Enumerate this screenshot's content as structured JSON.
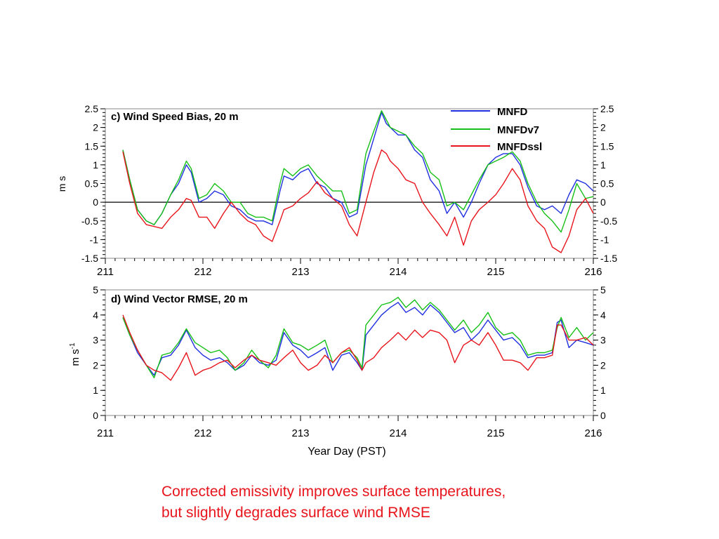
{
  "caption": {
    "line1": "Corrected emissivity improves surface temperatures,",
    "line2": "but slightly degrades surface wind RMSE"
  },
  "x_axis_label": "Year Day (PST)",
  "legend": [
    {
      "name": "MNFD",
      "color": "#1f2fe0"
    },
    {
      "name": "MNFDv7",
      "color": "#16c016"
    },
    {
      "name": "MNFDssl",
      "color": "#e8141c"
    }
  ],
  "chart_data": [
    {
      "type": "line",
      "title": "c) Wind Speed Bias, 20 m",
      "ylabel": "m s",
      "xlim": [
        211,
        216
      ],
      "ylim": [
        -1.5,
        2.5
      ],
      "xticks": [
        "211",
        "212",
        "213",
        "214",
        "215",
        "216"
      ],
      "yticks": [
        "-1.5",
        "-1",
        "-0.5",
        "0",
        "0.5",
        "1",
        "1.5",
        "2",
        "2.5"
      ],
      "zero_line": true,
      "series": [
        {
          "name": "MNFD",
          "color": "#1f2fe0",
          "x": [
            211.18,
            211.25,
            211.33,
            211.42,
            211.5,
            211.58,
            211.67,
            211.75,
            211.83,
            211.88,
            211.96,
            212.04,
            212.12,
            212.21,
            212.29,
            212.38,
            212.46,
            212.54,
            212.62,
            212.71,
            212.79,
            212.83,
            212.92,
            213.0,
            213.08,
            213.17,
            213.25,
            213.33,
            213.42,
            213.5,
            213.58,
            213.67,
            213.75,
            213.83,
            213.88,
            213.92,
            214.0,
            214.08,
            214.17,
            214.25,
            214.33,
            214.42,
            214.5,
            214.58,
            214.67,
            214.75,
            214.83,
            214.92,
            215.0,
            215.08,
            215.17,
            215.25,
            215.33,
            215.42,
            215.5,
            215.58,
            215.67,
            215.75,
            215.83,
            215.92,
            216.0
          ],
          "y": [
            1.4,
            0.6,
            -0.2,
            -0.5,
            -0.6,
            -0.3,
            0.2,
            0.5,
            1.0,
            0.8,
            0.0,
            0.1,
            0.3,
            0.2,
            -0.1,
            -0.2,
            -0.4,
            -0.5,
            -0.5,
            -0.6,
            0.3,
            0.7,
            0.6,
            0.8,
            0.9,
            0.5,
            0.4,
            0.1,
            0.0,
            -0.4,
            -0.3,
            1.0,
            1.7,
            2.4,
            2.1,
            2.0,
            1.8,
            1.8,
            1.4,
            1.2,
            0.6,
            0.3,
            -0.3,
            0.0,
            -0.4,
            0.0,
            0.5,
            1.0,
            1.2,
            1.3,
            1.3,
            1.0,
            0.4,
            -0.1,
            -0.2,
            -0.1,
            -0.3,
            0.2,
            0.6,
            0.5,
            0.3
          ]
        },
        {
          "name": "MNFDv7",
          "color": "#16c016",
          "x": [
            211.18,
            211.25,
            211.33,
            211.42,
            211.5,
            211.58,
            211.67,
            211.75,
            211.83,
            211.88,
            211.96,
            212.04,
            212.12,
            212.21,
            212.29,
            212.38,
            212.46,
            212.54,
            212.62,
            212.71,
            212.79,
            212.83,
            212.92,
            213.0,
            213.08,
            213.17,
            213.25,
            213.33,
            213.42,
            213.5,
            213.58,
            213.67,
            213.75,
            213.83,
            213.88,
            213.92,
            214.0,
            214.08,
            214.17,
            214.25,
            214.33,
            214.42,
            214.5,
            214.58,
            214.67,
            214.75,
            214.83,
            214.92,
            215.0,
            215.08,
            215.17,
            215.25,
            215.33,
            215.42,
            215.5,
            215.58,
            215.67,
            215.75,
            215.83,
            215.92,
            216.0
          ],
          "y": [
            1.4,
            0.6,
            -0.2,
            -0.5,
            -0.6,
            -0.3,
            0.2,
            0.6,
            1.1,
            0.9,
            0.1,
            0.2,
            0.5,
            0.3,
            0.0,
            0.0,
            -0.3,
            -0.4,
            -0.4,
            -0.5,
            0.5,
            0.9,
            0.7,
            0.9,
            1.0,
            0.7,
            0.5,
            0.3,
            0.3,
            -0.3,
            -0.2,
            1.3,
            1.9,
            2.45,
            2.2,
            2.0,
            1.9,
            1.8,
            1.5,
            1.3,
            0.8,
            0.6,
            -0.1,
            0.0,
            -0.2,
            0.2,
            0.6,
            1.0,
            1.1,
            1.2,
            1.35,
            1.1,
            0.5,
            0.0,
            -0.3,
            -0.5,
            -0.8,
            -0.2,
            0.5,
            0.1,
            0.15
          ]
        },
        {
          "name": "MNFDssl",
          "color": "#e8141c",
          "x": [
            211.18,
            211.25,
            211.33,
            211.42,
            211.5,
            211.58,
            211.67,
            211.75,
            211.83,
            211.88,
            211.96,
            212.04,
            212.12,
            212.21,
            212.29,
            212.38,
            212.46,
            212.54,
            212.62,
            212.71,
            212.79,
            212.83,
            212.92,
            213.0,
            213.08,
            213.17,
            213.25,
            213.33,
            213.42,
            213.5,
            213.58,
            213.67,
            213.75,
            213.83,
            213.88,
            213.92,
            214.0,
            214.08,
            214.17,
            214.25,
            214.33,
            214.42,
            214.5,
            214.58,
            214.67,
            214.75,
            214.83,
            214.92,
            215.0,
            215.08,
            215.17,
            215.25,
            215.33,
            215.42,
            215.5,
            215.58,
            215.67,
            215.75,
            215.83,
            215.92,
            216.0
          ],
          "y": [
            1.35,
            0.5,
            -0.3,
            -0.6,
            -0.65,
            -0.7,
            -0.4,
            -0.2,
            0.1,
            0.05,
            -0.4,
            -0.4,
            -0.7,
            -0.3,
            0.0,
            -0.3,
            -0.5,
            -0.6,
            -0.9,
            -1.05,
            -0.5,
            -0.2,
            -0.1,
            0.1,
            0.25,
            0.55,
            0.25,
            0.1,
            -0.1,
            -0.6,
            -0.9,
            0.0,
            0.8,
            1.4,
            1.3,
            1.1,
            0.9,
            0.6,
            0.5,
            0.0,
            -0.3,
            -0.6,
            -0.9,
            -0.4,
            -1.15,
            -0.5,
            -0.2,
            0.0,
            0.2,
            0.5,
            0.9,
            0.6,
            -0.1,
            -0.5,
            -0.7,
            -1.2,
            -1.35,
            -0.9,
            -0.2,
            0.1,
            -0.3
          ]
        }
      ]
    },
    {
      "type": "line",
      "title": "d) Wind Vector RMSE, 20 m",
      "ylabel": "m s",
      "ylabel_sup": "-1",
      "xlim": [
        211,
        216
      ],
      "ylim": [
        0,
        5
      ],
      "xticks": [
        "211",
        "212",
        "213",
        "214",
        "215",
        "216"
      ],
      "yticks": [
        "0",
        "1",
        "2",
        "3",
        "4",
        "5"
      ],
      "series": [
        {
          "name": "MNFD",
          "color": "#1f2fe0",
          "x": [
            211.18,
            211.25,
            211.33,
            211.42,
            211.5,
            211.58,
            211.67,
            211.75,
            211.83,
            211.92,
            212.0,
            212.08,
            212.17,
            212.25,
            212.33,
            212.42,
            212.5,
            212.58,
            212.67,
            212.75,
            212.83,
            212.92,
            213.0,
            213.08,
            213.17,
            213.25,
            213.33,
            213.42,
            213.5,
            213.58,
            213.63,
            213.67,
            213.75,
            213.83,
            213.92,
            214.0,
            214.08,
            214.17,
            214.25,
            214.33,
            214.42,
            214.5,
            214.58,
            214.67,
            214.75,
            214.83,
            214.92,
            215.0,
            215.08,
            215.17,
            215.25,
            215.33,
            215.42,
            215.5,
            215.58,
            215.63,
            215.67,
            215.75,
            215.83,
            215.92,
            216.0
          ],
          "y": [
            3.9,
            3.2,
            2.5,
            2.0,
            1.6,
            2.3,
            2.4,
            2.8,
            3.4,
            2.7,
            2.4,
            2.2,
            2.3,
            2.1,
            1.8,
            2.0,
            2.4,
            2.1,
            2.0,
            2.2,
            3.3,
            2.8,
            2.6,
            2.3,
            2.5,
            2.7,
            1.8,
            2.4,
            2.5,
            2.1,
            1.8,
            3.2,
            3.6,
            4.0,
            4.3,
            4.5,
            4.1,
            4.3,
            4.0,
            4.4,
            4.1,
            3.7,
            3.3,
            3.5,
            3.0,
            3.3,
            3.8,
            3.4,
            3.0,
            3.1,
            2.8,
            2.3,
            2.4,
            2.4,
            2.5,
            3.7,
            3.8,
            2.7,
            3.0,
            2.9,
            2.8
          ]
        },
        {
          "name": "MNFDv7",
          "color": "#16c016",
          "x": [
            211.18,
            211.25,
            211.33,
            211.42,
            211.5,
            211.58,
            211.67,
            211.75,
            211.83,
            211.92,
            212.0,
            212.08,
            212.17,
            212.25,
            212.33,
            212.42,
            212.5,
            212.58,
            212.67,
            212.75,
            212.83,
            212.92,
            213.0,
            213.08,
            213.17,
            213.25,
            213.33,
            213.42,
            213.5,
            213.58,
            213.63,
            213.67,
            213.75,
            213.83,
            213.92,
            214.0,
            214.08,
            214.17,
            214.25,
            214.33,
            214.42,
            214.5,
            214.58,
            214.67,
            214.75,
            214.83,
            214.92,
            215.0,
            215.08,
            215.17,
            215.25,
            215.33,
            215.42,
            215.5,
            215.58,
            215.63,
            215.67,
            215.75,
            215.83,
            215.92,
            216.0
          ],
          "y": [
            3.9,
            3.2,
            2.6,
            2.0,
            1.5,
            2.4,
            2.5,
            2.9,
            3.45,
            2.9,
            2.7,
            2.5,
            2.6,
            2.3,
            1.8,
            2.1,
            2.6,
            2.2,
            1.9,
            2.4,
            3.45,
            2.9,
            2.8,
            2.6,
            2.8,
            3.0,
            2.1,
            2.5,
            2.6,
            2.3,
            1.9,
            3.6,
            4.0,
            4.4,
            4.5,
            4.7,
            4.3,
            4.6,
            4.2,
            4.5,
            4.2,
            3.8,
            3.4,
            3.8,
            3.3,
            3.6,
            4.1,
            3.5,
            3.2,
            3.3,
            3.0,
            2.4,
            2.5,
            2.5,
            2.6,
            3.5,
            3.9,
            3.1,
            3.5,
            3.0,
            3.3
          ]
        },
        {
          "name": "MNFDssl",
          "color": "#e8141c",
          "x": [
            211.18,
            211.25,
            211.33,
            211.42,
            211.5,
            211.58,
            211.67,
            211.75,
            211.83,
            211.92,
            212.0,
            212.08,
            212.17,
            212.25,
            212.33,
            212.42,
            212.5,
            212.58,
            212.67,
            212.75,
            212.83,
            212.92,
            213.0,
            213.08,
            213.17,
            213.25,
            213.33,
            213.42,
            213.5,
            213.58,
            213.63,
            213.67,
            213.75,
            213.83,
            213.92,
            214.0,
            214.08,
            214.17,
            214.25,
            214.33,
            214.42,
            214.5,
            214.58,
            214.67,
            214.75,
            214.83,
            214.92,
            215.0,
            215.08,
            215.17,
            215.25,
            215.33,
            215.42,
            215.5,
            215.58,
            215.63,
            215.67,
            215.75,
            215.83,
            215.92,
            216.0
          ],
          "y": [
            4.0,
            3.3,
            2.6,
            2.0,
            1.8,
            1.7,
            1.4,
            1.9,
            2.5,
            1.6,
            1.8,
            1.9,
            2.1,
            2.2,
            1.9,
            2.2,
            2.4,
            2.2,
            2.1,
            2.0,
            2.3,
            2.6,
            2.1,
            1.8,
            2.0,
            2.4,
            2.1,
            2.5,
            2.7,
            2.2,
            1.8,
            2.1,
            2.3,
            2.7,
            3.0,
            3.3,
            3.0,
            3.4,
            3.1,
            3.4,
            3.3,
            3.0,
            2.1,
            2.8,
            3.0,
            2.8,
            3.3,
            2.8,
            2.2,
            2.2,
            2.1,
            1.8,
            2.3,
            2.3,
            2.4,
            3.6,
            3.6,
            3.0,
            3.0,
            3.1,
            2.8
          ]
        }
      ]
    }
  ]
}
